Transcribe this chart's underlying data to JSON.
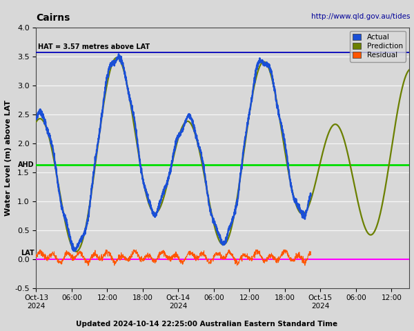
{
  "title_left": "Cairns",
  "title_right": "http://www.qld.gov.au/tides",
  "ylabel": "Water Level (m) above LAT",
  "xlabel_note": "Updated 2024-10-14 22:25:00 Australian Eastern Standard Time",
  "ylim": [
    -0.5,
    4.0
  ],
  "xlim": [
    0,
    63
  ],
  "hat_value": 3.57,
  "hat_label": "HAT = 3.57 metres above LAT",
  "ahd_value": 1.63,
  "ahd_label": "AHD",
  "lat_value": 0.0,
  "lat_label": "LAT",
  "hat_color": "#0000bb",
  "ahd_color": "#00dd00",
  "lat_color": "#ff00ff",
  "actual_color": "#1a4fd6",
  "prediction_color": "#6b8000",
  "residual_color": "#ff5500",
  "bg_color": "#d8d8d8",
  "legend_entries": [
    "Actual",
    "Prediction",
    "Residual"
  ],
  "legend_colors": [
    "#1a4fd6",
    "#6b8000",
    "#ff5500"
  ],
  "tick_positions": [
    0,
    6,
    12,
    18,
    24,
    30,
    36,
    42,
    48,
    54,
    60
  ],
  "tick_labels": [
    "Oct-13\n2024",
    "06:00",
    "12:00",
    "18:00",
    "Oct-14\n2024",
    "06:00",
    "12:00",
    "18:00",
    "Oct-15\n2024",
    "06:00",
    "12:00"
  ],
  "cutoff_hour": 46.42,
  "yticks": [
    -0.5,
    0.0,
    0.5,
    1.0,
    1.5,
    2.0,
    2.5,
    3.0,
    3.5,
    4.0
  ]
}
